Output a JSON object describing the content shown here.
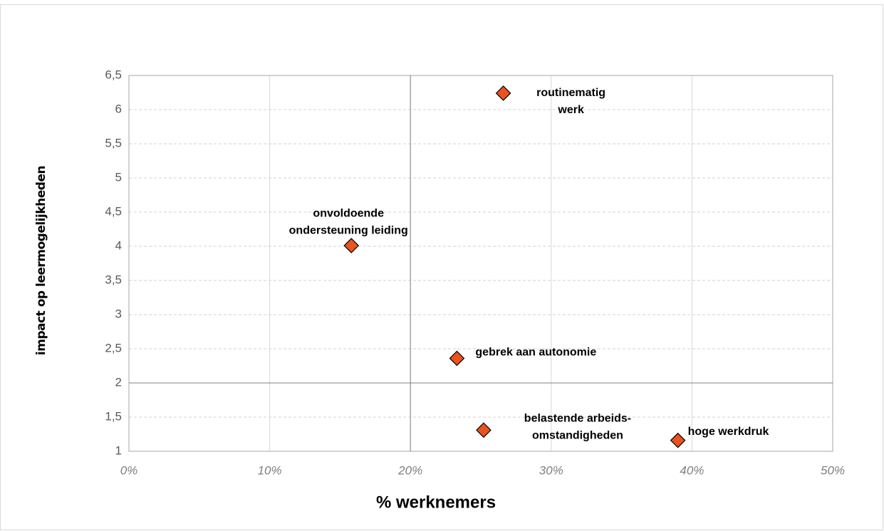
{
  "chart_data": {
    "type": "scatter",
    "x_label": "% werknemers",
    "y_label": "impact op leermogelijkheden",
    "x": [
      26.6,
      15.8,
      23.3,
      25.2,
      39.0
    ],
    "values": [
      6.24,
      4.01,
      2.36,
      1.31,
      1.16
    ],
    "point_labels": [
      [
        "routinematig",
        "werk"
      ],
      [
        "onvoldoende",
        "ondersteuning leiding"
      ],
      [
        "gebrek aan autonomie"
      ],
      [
        "belastende arbeids-",
        "omstandigheden"
      ],
      [
        "hoge werkdruk"
      ]
    ],
    "color": "#e8531f",
    "xlim": [
      0,
      50
    ],
    "xticks": [
      {
        "value": 0,
        "label": "0%"
      },
      {
        "value": 10,
        "label": "10%"
      },
      {
        "value": 20,
        "label": "20%"
      },
      {
        "value": 30,
        "label": "30%"
      },
      {
        "value": 40,
        "label": "40%"
      },
      {
        "value": 50,
        "label": "50%"
      }
    ],
    "ylim": [
      1,
      6.5
    ],
    "yticks": [
      1,
      {
        "value": 1.5,
        "label": "1,5"
      },
      2,
      {
        "value": 2.5,
        "label": "2,5"
      },
      3,
      {
        "value": 3.5,
        "label": "3,5"
      },
      4,
      {
        "value": 4.5,
        "label": "4,5"
      },
      5,
      {
        "value": 5.5,
        "label": "5,5"
      },
      6,
      {
        "value": 6.5,
        "label": "6,5"
      }
    ],
    "x_reference": 20,
    "y_reference": 2,
    "grid": true
  }
}
